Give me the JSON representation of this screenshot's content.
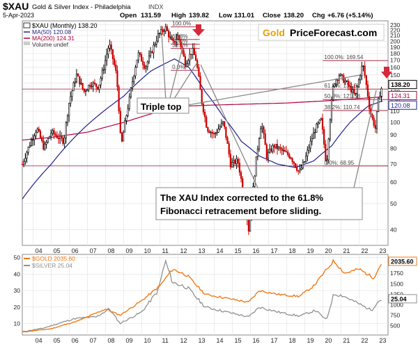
{
  "header": {
    "symbol": "$XAU",
    "name": "Gold & Silver Index - Philadelphia",
    "exchange": "INDX",
    "date": "5-Apr-2023",
    "open_label": "Open",
    "open": "131.59",
    "high_label": "High",
    "high": "139.82",
    "low_label": "Low",
    "low": "131.01",
    "close_label": "Close",
    "close": "138.20",
    "chg_label": "Chg",
    "chg": "+6.76 (+5.14%)"
  },
  "logo": {
    "word1": "Gold",
    "word2": "PriceForecast.com"
  },
  "colors": {
    "price_up": "#000000",
    "price_down": "#cc0000",
    "ma50": "#1f1f8f",
    "ma200": "#b3003c",
    "gold": "#f07a16",
    "silver": "#909090",
    "fib_line": "#a01030",
    "logo_gold": "#e8a000",
    "arrow": "#d42a3c"
  },
  "chart_data": [
    {
      "type": "candlestick",
      "title": "$XAU (Monthly) 138.20",
      "legend": [
        {
          "name": "$XAU (Monthly) 138.20"
        },
        {
          "name": "MA(50) 120.08"
        },
        {
          "name": "MA(200) 124.31"
        },
        {
          "name": "Volume undef"
        }
      ],
      "scale": "log",
      "ylim": [
        35,
        238
      ],
      "xlim": [
        2003.4,
        2023.6
      ],
      "x_ticks": [
        "04",
        "05",
        "06",
        "07",
        "08",
        "09",
        "10",
        "11",
        "12",
        "13",
        "14",
        "15",
        "16",
        "17",
        "18",
        "19",
        "20",
        "21",
        "22",
        "23"
      ],
      "y_ticks": [
        40,
        50,
        60,
        70,
        80,
        90,
        100,
        110,
        120,
        130,
        140,
        150,
        160,
        170,
        180,
        190,
        200,
        210,
        220,
        230
      ],
      "price_anchors": [
        [
          2003.4,
          70
        ],
        [
          2004.2,
          95
        ],
        [
          2004.6,
          80
        ],
        [
          2005.0,
          92
        ],
        [
          2005.7,
          85
        ],
        [
          2006.0,
          120
        ],
        [
          2006.4,
          150
        ],
        [
          2006.8,
          130
        ],
        [
          2007.2,
          140
        ],
        [
          2007.6,
          135
        ],
        [
          2007.9,
          160
        ],
        [
          2008.2,
          195
        ],
        [
          2008.6,
          150
        ],
        [
          2008.85,
          80
        ],
        [
          2009.3,
          120
        ],
        [
          2009.8,
          180
        ],
        [
          2010.2,
          160
        ],
        [
          2010.5,
          180
        ],
        [
          2010.9,
          210
        ],
        [
          2011.3,
          225
        ],
        [
          2011.7,
          195
        ],
        [
          2012.0,
          210
        ],
        [
          2012.4,
          165
        ],
        [
          2012.8,
          185
        ],
        [
          2013.0,
          170
        ],
        [
          2013.3,
          120
        ],
        [
          2013.6,
          95
        ],
        [
          2014.0,
          90
        ],
        [
          2014.5,
          100
        ],
        [
          2014.9,
          70
        ],
        [
          2015.3,
          72
        ],
        [
          2015.6,
          55
        ],
        [
          2015.9,
          40
        ],
        [
          2016.1,
          52
        ],
        [
          2016.6,
          100
        ],
        [
          2016.9,
          75
        ],
        [
          2017.3,
          82
        ],
        [
          2017.8,
          78
        ],
        [
          2018.2,
          75
        ],
        [
          2018.7,
          65
        ],
        [
          2019.0,
          72
        ],
        [
          2019.6,
          95
        ],
        [
          2019.9,
          102
        ],
        [
          2020.2,
          68
        ],
        [
          2020.6,
          140
        ],
        [
          2020.9,
          150
        ],
        [
          2021.3,
          140
        ],
        [
          2021.8,
          125
        ],
        [
          2022.2,
          165
        ],
        [
          2022.6,
          110
        ],
        [
          2022.9,
          95
        ],
        [
          2023.1,
          125
        ],
        [
          2023.3,
          138.2
        ]
      ],
      "ma50_anchors": [
        [
          2003.4,
          52
        ],
        [
          2005.0,
          70
        ],
        [
          2007.0,
          98
        ],
        [
          2009.0,
          125
        ],
        [
          2010.5,
          155
        ],
        [
          2011.8,
          172
        ],
        [
          2012.6,
          160
        ],
        [
          2013.5,
          130
        ],
        [
          2014.5,
          105
        ],
        [
          2015.5,
          85
        ],
        [
          2016.5,
          75
        ],
        [
          2017.5,
          70
        ],
        [
          2018.5,
          68
        ],
        [
          2019.5,
          72
        ],
        [
          2020.5,
          82
        ],
        [
          2021.5,
          100
        ],
        [
          2022.5,
          115
        ],
        [
          2023.3,
          120.08
        ]
      ],
      "ma200_anchors": [
        [
          2003.4,
          86
        ],
        [
          2005.0,
          88
        ],
        [
          2007.0,
          92
        ],
        [
          2009.0,
          100
        ],
        [
          2011.0,
          110
        ],
        [
          2012.5,
          115
        ],
        [
          2014.0,
          116
        ],
        [
          2016.0,
          117
        ],
        [
          2018.0,
          118
        ],
        [
          2020.0,
          120
        ],
        [
          2021.5,
          122
        ],
        [
          2023.3,
          124.31
        ]
      ],
      "price_labels": [
        {
          "value": "138.20",
          "y": 138.2
        },
        {
          "value": "124.31",
          "y": 124.31
        },
        {
          "value": "120.08",
          "y": 120.08
        }
      ],
      "fib_left": {
        "x_start": 2011.6,
        "x_end": 2013.2,
        "levels": [
          {
            "label": "100.0%",
            "y": 226
          },
          {
            "label": "61.8%",
            "y": 203
          },
          {
            "label": "50.0%",
            "y": 195
          },
          {
            "label": "38.2%",
            "y": 188
          },
          {
            "label": "0.0%",
            "y": 156
          }
        ]
      },
      "fib_right": {
        "x_start": 2020.0,
        "x_end": 2023.6,
        "levels": [
          {
            "label": "100.0%: 169.54",
            "y": 169.54
          },
          {
            "label": "61.8%: 132.92",
            "y": 132.92
          },
          {
            "label": "50.0%: 121.58",
            "y": 121.58
          },
          {
            "label": "38.2%: 110.74",
            "y": 110.74
          },
          {
            "label": "0.0%: 68.95",
            "y": 68.95
          }
        ]
      },
      "annotations": {
        "triple_top": "Triple top",
        "correction_line1": "The XAU Index corrected to the 61.8%",
        "correction_line2": "Fibonacci retracement before sliding."
      }
    },
    {
      "type": "line",
      "legend": [
        {
          "name": "$GOLD 2035.60"
        },
        {
          "name": "$SILVER 25.04"
        }
      ],
      "xlim": [
        2003.4,
        2023.6
      ],
      "x_ticks": [
        "04",
        "05",
        "06",
        "07",
        "08",
        "09",
        "10",
        "11",
        "12",
        "13",
        "14",
        "15",
        "16",
        "17",
        "18",
        "19",
        "20",
        "21",
        "22",
        "23"
      ],
      "left_axis": {
        "ticks": [
          10,
          20,
          30,
          40,
          50
        ],
        "ylim": [
          3,
          52
        ]
      },
      "right_axis": {
        "ticks": [
          500,
          750,
          1000,
          1250,
          1500,
          1750
        ],
        "ylim": [
          280,
          2200
        ]
      },
      "gold_anchors": [
        [
          2003.4,
          350
        ],
        [
          2005.0,
          430
        ],
        [
          2006.5,
          620
        ],
        [
          2008.0,
          900
        ],
        [
          2008.8,
          750
        ],
        [
          2010.0,
          1100
        ],
        [
          2011.0,
          1450
        ],
        [
          2011.7,
          1850
        ],
        [
          2012.5,
          1700
        ],
        [
          2013.5,
          1250
        ],
        [
          2015.9,
          1060
        ],
        [
          2016.5,
          1340
        ],
        [
          2017.5,
          1250
        ],
        [
          2018.7,
          1200
        ],
        [
          2019.5,
          1450
        ],
        [
          2020.6,
          2050
        ],
        [
          2021.2,
          1750
        ],
        [
          2022.0,
          1850
        ],
        [
          2022.8,
          1640
        ],
        [
          2023.3,
          2035.6
        ]
      ],
      "silver_anchors": [
        [
          2003.4,
          5
        ],
        [
          2004.5,
          7
        ],
        [
          2006.3,
          13
        ],
        [
          2007.5,
          14
        ],
        [
          2008.2,
          19
        ],
        [
          2008.8,
          10
        ],
        [
          2010.0,
          17
        ],
        [
          2010.9,
          30
        ],
        [
          2011.3,
          48
        ],
        [
          2011.7,
          35
        ],
        [
          2012.5,
          32
        ],
        [
          2013.5,
          20
        ],
        [
          2015.9,
          14
        ],
        [
          2016.5,
          20
        ],
        [
          2017.5,
          17
        ],
        [
          2018.7,
          14.5
        ],
        [
          2019.6,
          18
        ],
        [
          2020.2,
          12
        ],
        [
          2020.6,
          28
        ],
        [
          2021.1,
          27
        ],
        [
          2021.8,
          23
        ],
        [
          2022.7,
          18
        ],
        [
          2023.0,
          23
        ],
        [
          2023.3,
          25.04
        ]
      ],
      "price_labels": [
        {
          "value": "2035.60",
          "axis": "right",
          "y": 2035.6
        },
        {
          "value": "25.04",
          "axis": "left",
          "y": 25.04
        }
      ]
    }
  ]
}
